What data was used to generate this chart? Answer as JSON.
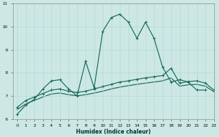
{
  "xlabel": "Humidex (Indice chaleur)",
  "bg_color": "#cde8e4",
  "grid_color": "#b0d8d4",
  "line_color": "#1a6b5a",
  "xlim": [
    -0.5,
    23
  ],
  "ylim": [
    6,
    11
  ],
  "x_ticks": [
    0,
    1,
    2,
    3,
    4,
    5,
    6,
    7,
    8,
    9,
    10,
    11,
    12,
    13,
    14,
    15,
    16,
    17,
    18,
    19,
    20,
    21,
    22,
    23
  ],
  "y_ticks": [
    6,
    7,
    8,
    9,
    10,
    11
  ],
  "series1_x": [
    0,
    1,
    2,
    3,
    4,
    5,
    6,
    7,
    8,
    9,
    10,
    11,
    12,
    13,
    14,
    15,
    16,
    17,
    18,
    19,
    20,
    21,
    22
  ],
  "series1_y": [
    6.2,
    6.6,
    6.85,
    7.3,
    7.65,
    7.7,
    7.3,
    7.0,
    8.5,
    7.35,
    9.8,
    10.4,
    10.55,
    10.2,
    9.5,
    10.2,
    9.5,
    8.25,
    7.6,
    7.7,
    7.6,
    7.25,
    7.25
  ],
  "series2_x": [
    0,
    1,
    2,
    3,
    4,
    5,
    6,
    7,
    8,
    9,
    10,
    11,
    12,
    13,
    14,
    15,
    16,
    17,
    18,
    19,
    20,
    21,
    22,
    23
  ],
  "series2_y": [
    6.5,
    6.8,
    6.95,
    7.1,
    7.25,
    7.3,
    7.2,
    7.15,
    7.2,
    7.3,
    7.4,
    7.5,
    7.6,
    7.65,
    7.72,
    7.78,
    7.83,
    7.88,
    8.2,
    7.55,
    7.62,
    7.65,
    7.55,
    7.25
  ],
  "series3_x": [
    0,
    1,
    2,
    3,
    4,
    5,
    6,
    7,
    8,
    9,
    10,
    11,
    12,
    13,
    14,
    15,
    16,
    17,
    18,
    19,
    20,
    21,
    22,
    23
  ],
  "series3_y": [
    6.4,
    6.65,
    6.8,
    6.95,
    7.08,
    7.12,
    7.05,
    7.0,
    7.05,
    7.12,
    7.2,
    7.3,
    7.38,
    7.44,
    7.5,
    7.55,
    7.6,
    7.65,
    7.78,
    7.42,
    7.48,
    7.5,
    7.42,
    7.18
  ]
}
